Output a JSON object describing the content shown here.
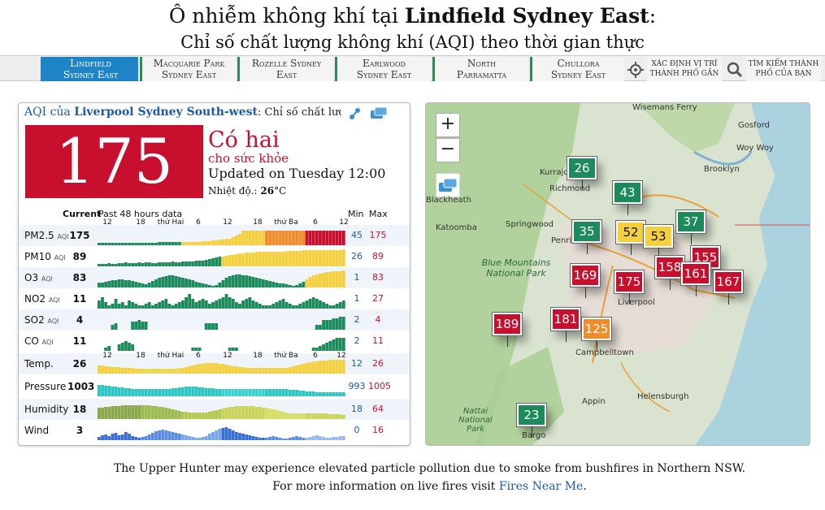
{
  "header": {
    "title_prefix": "Ô nhiễm không khí tại ",
    "title_city": "Lindfield Sydney East",
    "title_suffix": ":",
    "subtitle": "Chỉ số chất lượng không khí (AQI) theo thời gian thực"
  },
  "nav": {
    "cities": [
      {
        "line1": "Lindfield",
        "line2": "Sydney East",
        "active": true
      },
      {
        "line1": "Macquarie Park",
        "line2": "Sydney East",
        "active": false
      },
      {
        "line1": "Rozelle Sydney",
        "line2": "East",
        "active": false
      },
      {
        "line1": "Earlwood",
        "line2": "Sydney East",
        "active": false
      },
      {
        "line1": "North",
        "line2": "Parramatta",
        "active": false
      },
      {
        "line1": "Chullora",
        "line2": "Sydney East",
        "active": false
      }
    ],
    "locate": {
      "line1": "xác định vị trí",
      "line2": "thành phố gần",
      "icon": "crosshair-icon"
    },
    "search": {
      "line1": "tìm kiếm thành",
      "line2": "phố của bạn",
      "icon": "search-icon"
    }
  },
  "panel": {
    "aqi_label": "AQI của ",
    "station": "Liverpool Sydney South-west",
    "head_rest": ": Chỉ số chất lượng",
    "aqi": "175",
    "status": "Có hai",
    "status_sub": "cho sức khỏe",
    "updated": "Updated on Tuesday 12:00",
    "temp_label": "Nhiệt độ.: ",
    "temp_value": "26",
    "temp_unit": "°C",
    "col_current": "Current",
    "col_past": "Past 48 hours data",
    "col_min": "Min",
    "col_max": "Max",
    "ticks": [
      "12",
      "18",
      "thứ Hai",
      "6",
      "12",
      "18",
      "thứ Ba",
      "6",
      "12"
    ],
    "ticks_lower": [
      "12",
      "18",
      "thứ Hai",
      "6",
      "12",
      "18",
      "thứ Ba",
      "6",
      "12"
    ],
    "rows": [
      {
        "name": "PM2.5",
        "unit": "AQI",
        "current": "175",
        "min": "45",
        "max": "175"
      },
      {
        "name": "PM10",
        "unit": "AQI",
        "current": "89",
        "min": "26",
        "max": "89"
      },
      {
        "name": "O3",
        "unit": "AQI",
        "current": "83",
        "min": "1",
        "max": "83"
      },
      {
        "name": "NO2",
        "unit": "AQI",
        "current": "11",
        "min": "1",
        "max": "27"
      },
      {
        "name": "SO2",
        "unit": "AQI",
        "current": "4",
        "min": "2",
        "max": "4"
      },
      {
        "name": "CO",
        "unit": "AQI",
        "current": "11",
        "min": "2",
        "max": "11"
      },
      {
        "name": "Temp.",
        "unit": "",
        "current": "26",
        "min": "12",
        "max": "26"
      },
      {
        "name": "Pressure",
        "unit": "",
        "current": "1003",
        "min": "993",
        "max": "1005"
      },
      {
        "name": "Humidity",
        "unit": "",
        "current": "18",
        "min": "18",
        "max": "64"
      },
      {
        "name": "Wind",
        "unit": "",
        "current": "3",
        "min": "0",
        "max": "16"
      }
    ]
  },
  "map": {
    "zoom_in": "+",
    "zoom_out": "−",
    "places": [
      "Wisemans Ferry",
      "Gosford",
      "Woy Woy",
      "Brooklyn",
      "Kurrajong",
      "Richmond",
      "Blackheath",
      "Katoomba",
      "Springwood",
      "Penrith",
      "Liverpool",
      "Campbelltown",
      "Appin",
      "Helensburgh",
      "Bargo"
    ],
    "parks": [
      "Blue Mountains National Park",
      "Nattai National Park"
    ],
    "markers": [
      {
        "value": "26",
        "color": "#1d8a5c"
      },
      {
        "value": "43",
        "color": "#1d8a5c"
      },
      {
        "value": "35",
        "color": "#1d8a5c"
      },
      {
        "value": "52",
        "color": "#f4d03f"
      },
      {
        "value": "53",
        "color": "#f4d03f"
      },
      {
        "value": "37",
        "color": "#1d8a5c"
      },
      {
        "value": "155",
        "color": "#c8102e"
      },
      {
        "value": "158",
        "color": "#c8102e"
      },
      {
        "value": "161",
        "color": "#c8102e"
      },
      {
        "value": "169",
        "color": "#c8102e"
      },
      {
        "value": "175",
        "color": "#c8102e"
      },
      {
        "value": "167",
        "color": "#c8102e"
      },
      {
        "value": "189",
        "color": "#c8102e"
      },
      {
        "value": "181",
        "color": "#c8102e"
      },
      {
        "value": "125",
        "color": "#f08c2a"
      },
      {
        "value": "23",
        "color": "#1d8a5c"
      }
    ]
  },
  "footer": {
    "notice": "The Upper Hunter may experience elevated particle pollution due to smoke from bushfires in Northern NSW.",
    "more_prefix": "For more information on live fires visit ",
    "more_link": "Fires Near Me",
    "more_suffix": "."
  }
}
